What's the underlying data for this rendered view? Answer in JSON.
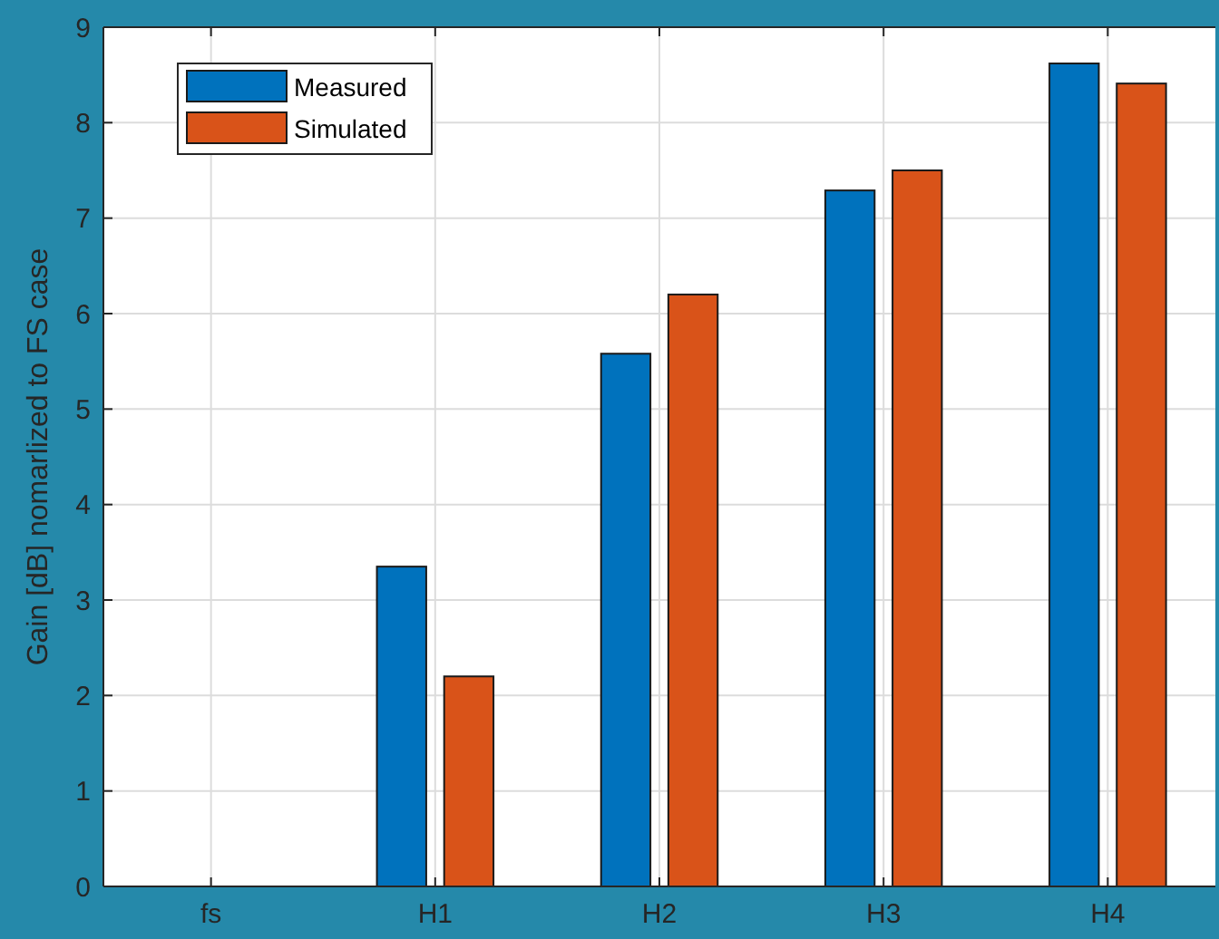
{
  "chart_data": {
    "type": "bar",
    "ylabel": "Gain [dB] nomarlized to FS case",
    "categories": [
      "fs",
      "H1",
      "H2",
      "H3",
      "H4"
    ],
    "series": [
      {
        "name": "Measured",
        "color": "#0072bd",
        "values": [
          0,
          3.35,
          5.58,
          7.29,
          8.62
        ]
      },
      {
        "name": "Simulated",
        "color": "#d95319",
        "values": [
          0,
          2.2,
          6.2,
          7.5,
          8.41
        ]
      }
    ],
    "ylim": [
      0,
      9
    ],
    "yticks": [
      0,
      1,
      2,
      3,
      4,
      5,
      6,
      7,
      8,
      9
    ],
    "grid": true,
    "legend": "top left"
  }
}
